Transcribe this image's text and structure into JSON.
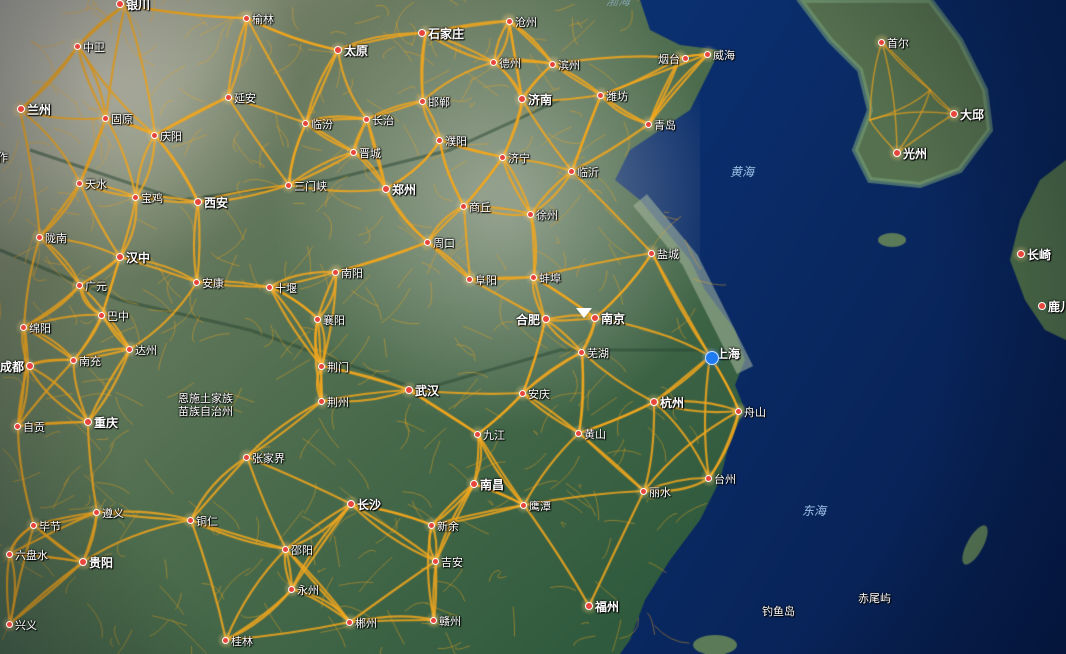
{
  "map": {
    "colors": {
      "sea": "#0b2f6e",
      "road": "#f2a71d",
      "land": "#4f6e4f",
      "marker": "#1e7bf2"
    },
    "seas": [
      {
        "id": "yellow-sea",
        "name": "黄海"
      },
      {
        "id": "east-sea",
        "name": "东海"
      },
      {
        "id": "bohai",
        "name": "渤海"
      }
    ],
    "cities": [
      {
        "id": "yinchuan",
        "name": "银川",
        "major": true
      },
      {
        "id": "yulin",
        "name": "榆林",
        "major": false
      },
      {
        "id": "shijiazhuang",
        "name": "石家庄",
        "major": true
      },
      {
        "id": "cangzhou",
        "name": "沧州",
        "major": false
      },
      {
        "id": "zhongwei",
        "name": "中卫",
        "major": false
      },
      {
        "id": "taiyuan",
        "name": "太原",
        "major": true
      },
      {
        "id": "dezhou",
        "name": "德州",
        "major": false
      },
      {
        "id": "binzhou",
        "name": "滨州",
        "major": false
      },
      {
        "id": "yantai",
        "name": "烟台",
        "major": false
      },
      {
        "id": "weihai",
        "name": "威海",
        "major": false
      },
      {
        "id": "seoul",
        "name": "首尔",
        "major": false
      },
      {
        "id": "lanzhou",
        "name": "兰州",
        "major": true
      },
      {
        "id": "yanan",
        "name": "延安",
        "major": false
      },
      {
        "id": "handan",
        "name": "邯郸",
        "major": false
      },
      {
        "id": "jinan",
        "name": "济南",
        "major": true
      },
      {
        "id": "weifang",
        "name": "潍坊",
        "major": false
      },
      {
        "id": "guyuan",
        "name": "固原",
        "major": false
      },
      {
        "id": "linfen",
        "name": "临汾",
        "major": false
      },
      {
        "id": "changzhi",
        "name": "长治",
        "major": false
      },
      {
        "id": "qingdao",
        "name": "青岛",
        "major": false
      },
      {
        "id": "daegu",
        "name": "大邱",
        "major": true
      },
      {
        "id": "qingyang",
        "name": "庆阳",
        "major": false
      },
      {
        "id": "puyang",
        "name": "濮阳",
        "major": false
      },
      {
        "id": "jincheng",
        "name": "晋城",
        "major": false
      },
      {
        "id": "jining",
        "name": "济宁",
        "major": false
      },
      {
        "id": "gwangju",
        "name": "光州",
        "major": true
      },
      {
        "id": "tianshui",
        "name": "天水",
        "major": false
      },
      {
        "id": "sanmenxia",
        "name": "三门峡",
        "major": false
      },
      {
        "id": "linyi",
        "name": "临沂",
        "major": false
      },
      {
        "id": "zhengzhou",
        "name": "郑州",
        "major": true
      },
      {
        "id": "baoji",
        "name": "宝鸡",
        "major": false
      },
      {
        "id": "xian",
        "name": "西安",
        "major": true
      },
      {
        "id": "shangqiu",
        "name": "商丘",
        "major": false
      },
      {
        "id": "xuzhou",
        "name": "徐州",
        "major": false
      },
      {
        "id": "longnan",
        "name": "陇南",
        "major": false
      },
      {
        "id": "zhoukou",
        "name": "周口",
        "major": false
      },
      {
        "id": "yancheng",
        "name": "盐城",
        "major": false
      },
      {
        "id": "hanzhong",
        "name": "汉中",
        "major": true
      },
      {
        "id": "nanyang",
        "name": "南阳",
        "major": false
      },
      {
        "id": "fuyang",
        "name": "阜阳",
        "major": false
      },
      {
        "id": "bengbu",
        "name": "蚌埠",
        "major": false
      },
      {
        "id": "nagasaki",
        "name": "长崎",
        "major": true
      },
      {
        "id": "guangyuan",
        "name": "广元",
        "major": false
      },
      {
        "id": "ankang",
        "name": "安康",
        "major": false
      },
      {
        "id": "shiyan",
        "name": "十堰",
        "major": false
      },
      {
        "id": "bazhong",
        "name": "巴中",
        "major": false
      },
      {
        "id": "xiangyang",
        "name": "襄阳",
        "major": false
      },
      {
        "id": "hefei",
        "name": "合肥",
        "major": true
      },
      {
        "id": "nanjing",
        "name": "南京",
        "major": true
      },
      {
        "id": "kagoshima",
        "name": "鹿儿",
        "major": true
      },
      {
        "id": "mianyang",
        "name": "绵阳",
        "major": false
      },
      {
        "id": "dazhou",
        "name": "达州",
        "major": false
      },
      {
        "id": "wuhu",
        "name": "芜湖",
        "major": false
      },
      {
        "id": "shanghai",
        "name": "上海",
        "major": true
      },
      {
        "id": "chengdu",
        "name": "成都",
        "major": true
      },
      {
        "id": "nanchong",
        "name": "南充",
        "major": false
      },
      {
        "id": "jingmen",
        "name": "荆门",
        "major": false
      },
      {
        "id": "wuhan",
        "name": "武汉",
        "major": true
      },
      {
        "id": "anqing",
        "name": "安庆",
        "major": false
      },
      {
        "id": "enshi",
        "name": "恩施土家族\n苗族自治州",
        "major": false
      },
      {
        "id": "jingzhou",
        "name": "荆州",
        "major": false
      },
      {
        "id": "hangzhou",
        "name": "杭州",
        "major": true
      },
      {
        "id": "zhoushan",
        "name": "舟山",
        "major": false
      },
      {
        "id": "zigong",
        "name": "自贡",
        "major": false
      },
      {
        "id": "chongqing",
        "name": "重庆",
        "major": true
      },
      {
        "id": "jiujiang",
        "name": "九江",
        "major": false
      },
      {
        "id": "huangshan",
        "name": "黄山",
        "major": false
      },
      {
        "id": "zhangjiajie",
        "name": "张家界",
        "major": false
      },
      {
        "id": "nanchang",
        "name": "南昌",
        "major": true
      },
      {
        "id": "lishui",
        "name": "丽水",
        "major": false
      },
      {
        "id": "taizhou",
        "name": "台州",
        "major": false
      },
      {
        "id": "yingtan",
        "name": "鹰潭",
        "major": false
      },
      {
        "id": "changsha",
        "name": "长沙",
        "major": true
      },
      {
        "id": "zunyi",
        "name": "遵义",
        "major": false
      },
      {
        "id": "tongren",
        "name": "铜仁",
        "major": false
      },
      {
        "id": "bijie",
        "name": "毕节",
        "major": false
      },
      {
        "id": "xinyu",
        "name": "新余",
        "major": false
      },
      {
        "id": "liupanshui",
        "name": "六盘水",
        "major": false
      },
      {
        "id": "shaoyang",
        "name": "邵阳",
        "major": false
      },
      {
        "id": "guiyang",
        "name": "贵阳",
        "major": true
      },
      {
        "id": "jian",
        "name": "吉安",
        "major": false
      },
      {
        "id": "yongzhou",
        "name": "永州",
        "major": false
      },
      {
        "id": "fuzhou",
        "name": "福州",
        "major": true
      },
      {
        "id": "xingyi",
        "name": "兴义",
        "major": false
      },
      {
        "id": "chenzhou",
        "name": "郴州",
        "major": false
      },
      {
        "id": "ganzhou",
        "name": "赣州",
        "major": false
      },
      {
        "id": "guilin",
        "name": "桂林",
        "major": false
      },
      {
        "id": "diaoyu",
        "name": "钓鱼岛",
        "major": false
      },
      {
        "id": "chiwei",
        "name": "赤尾屿",
        "major": false
      },
      {
        "id": "zuo",
        "name": "作",
        "major": false
      }
    ]
  }
}
